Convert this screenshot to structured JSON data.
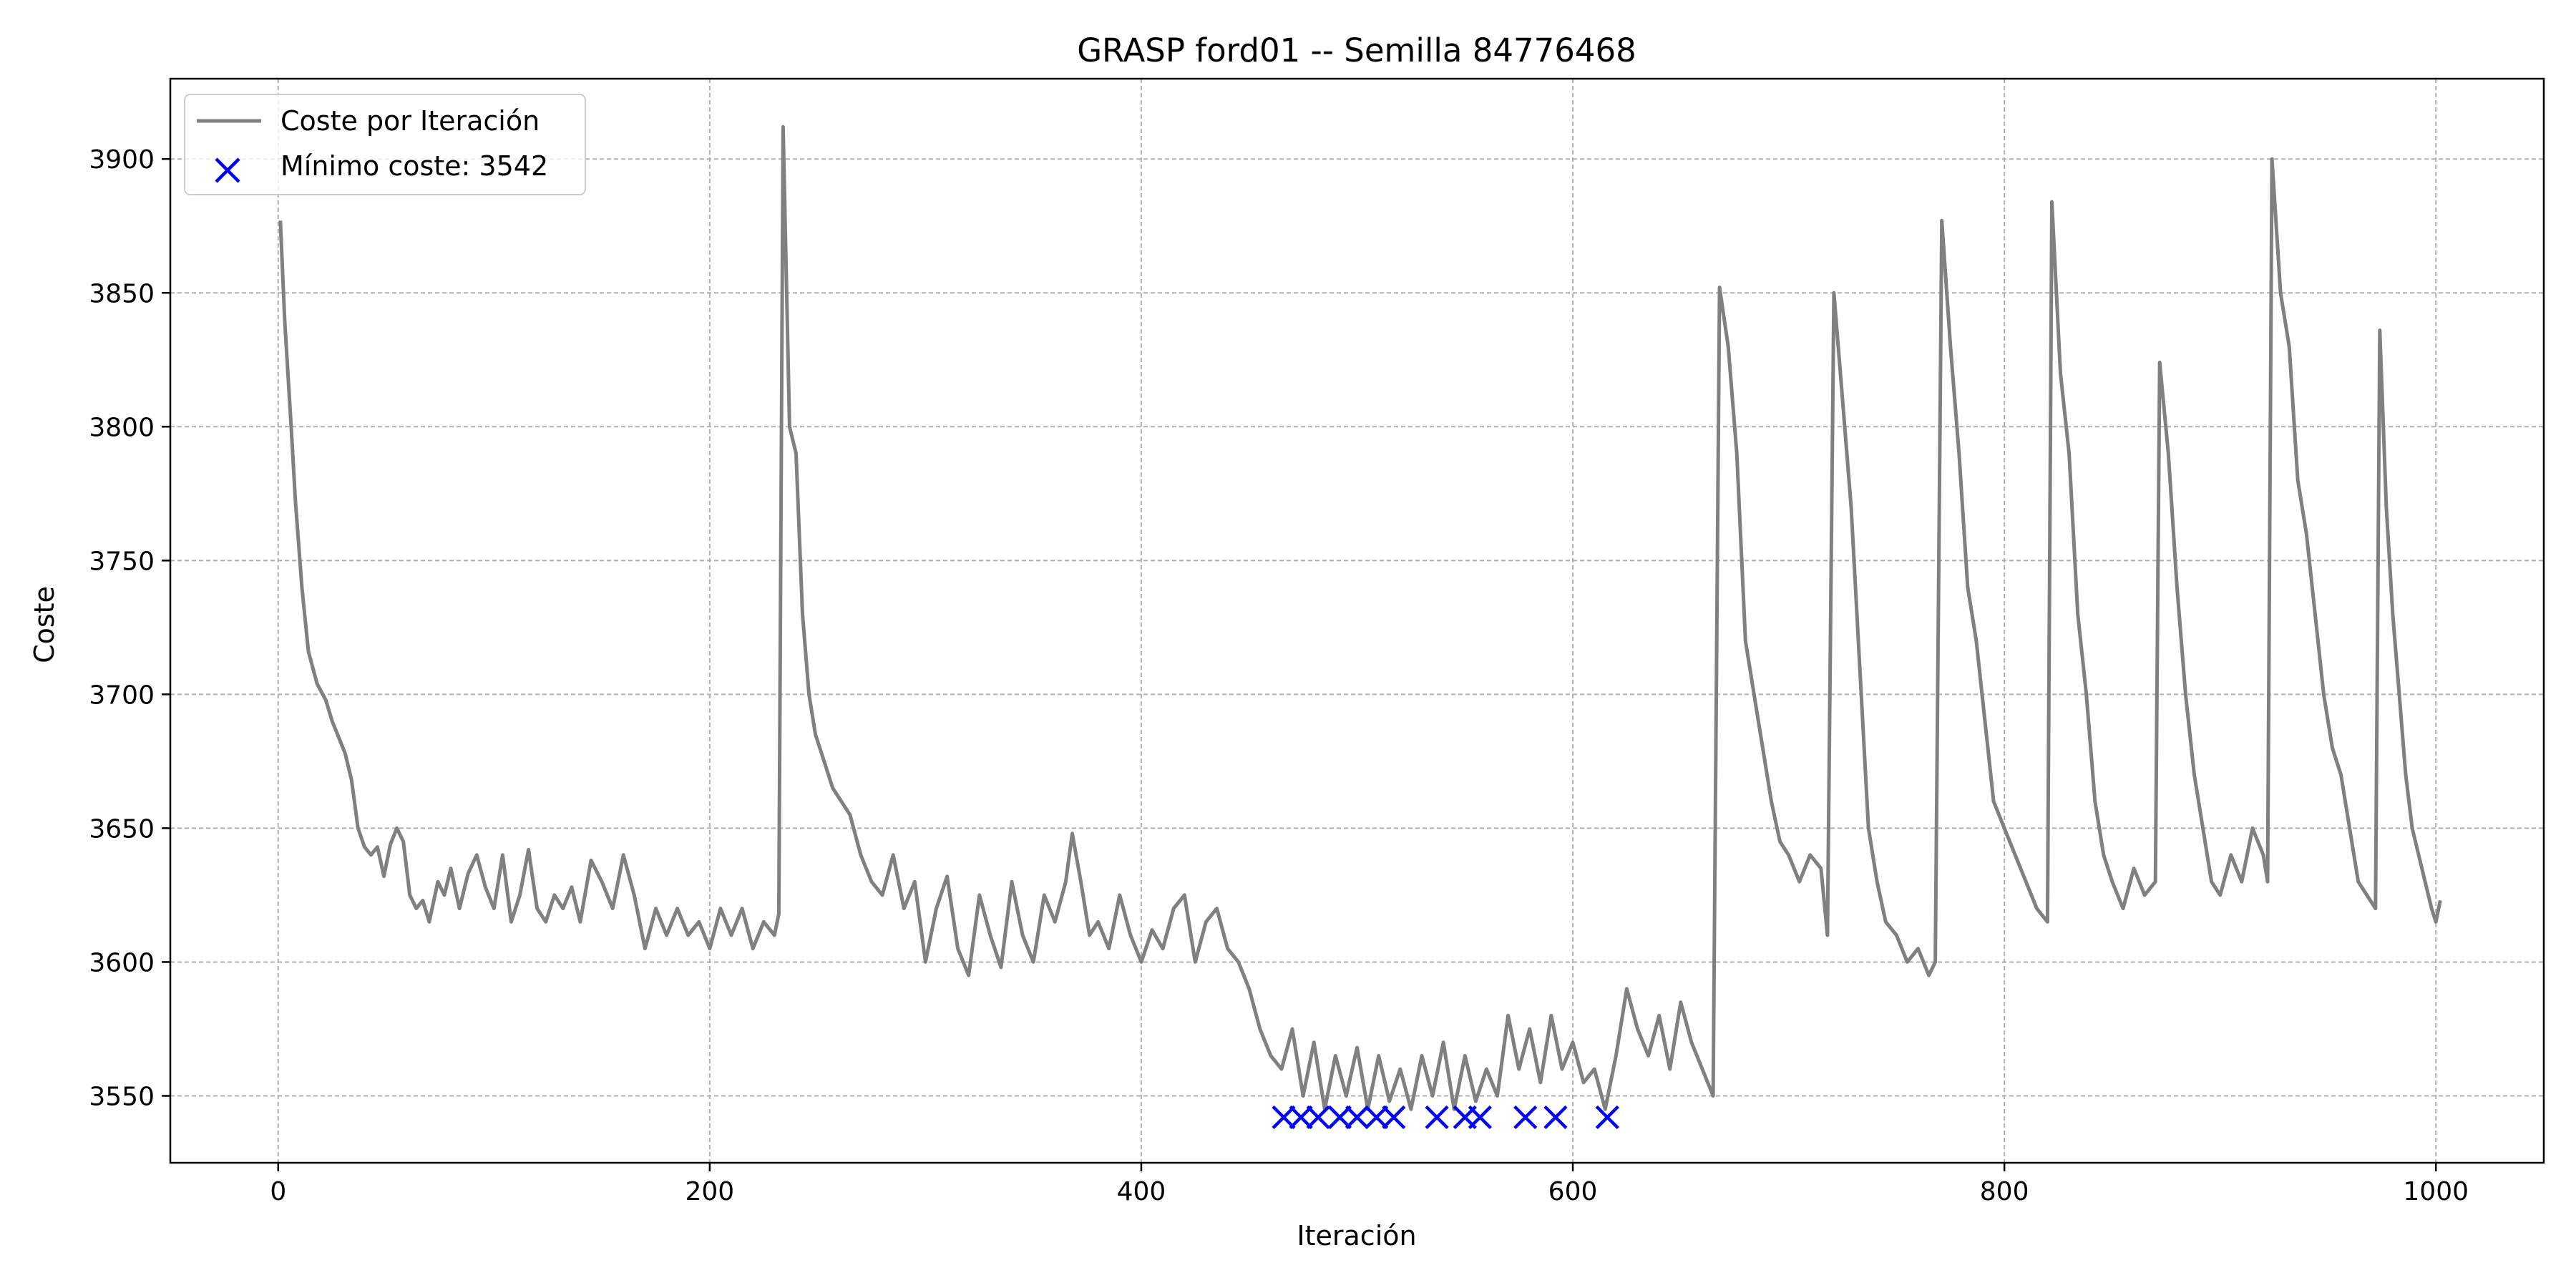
{
  "chart_data": {
    "type": "line",
    "title": "GRASP ford01 -- Semilla 84776468",
    "xlabel": "Iteración",
    "ylabel": "Coste",
    "xlim": [
      -50,
      1050
    ],
    "ylim": [
      3525,
      3930
    ],
    "xticks": [
      0,
      200,
      400,
      600,
      800,
      1000
    ],
    "yticks": [
      3550,
      3600,
      3650,
      3700,
      3750,
      3800,
      3850,
      3900
    ],
    "grid": true,
    "legend_position": "top-left",
    "colors": {
      "line": "#808080",
      "marker": "#0000ff"
    },
    "series": [
      {
        "name": "Coste por Iteración",
        "type": "line",
        "points": [
          [
            1,
            3877
          ],
          [
            3,
            3840
          ],
          [
            6,
            3800
          ],
          [
            8,
            3772
          ],
          [
            11,
            3740
          ],
          [
            14,
            3716
          ],
          [
            18,
            3704
          ],
          [
            22,
            3698
          ],
          [
            25,
            3690
          ],
          [
            28,
            3684
          ],
          [
            31,
            3678
          ],
          [
            34,
            3668
          ],
          [
            37,
            3650
          ],
          [
            40,
            3643
          ],
          [
            43,
            3640
          ],
          [
            46,
            3643
          ],
          [
            49,
            3632
          ],
          [
            52,
            3644
          ],
          [
            55,
            3650
          ],
          [
            58,
            3645
          ],
          [
            61,
            3625
          ],
          [
            64,
            3620
          ],
          [
            67,
            3623
          ],
          [
            70,
            3615
          ],
          [
            74,
            3630
          ],
          [
            77,
            3625
          ],
          [
            80,
            3635
          ],
          [
            84,
            3620
          ],
          [
            88,
            3633
          ],
          [
            92,
            3640
          ],
          [
            96,
            3628
          ],
          [
            100,
            3620
          ],
          [
            104,
            3640
          ],
          [
            108,
            3615
          ],
          [
            112,
            3625
          ],
          [
            116,
            3642
          ],
          [
            120,
            3620
          ],
          [
            124,
            3615
          ],
          [
            128,
            3625
          ],
          [
            132,
            3620
          ],
          [
            136,
            3628
          ],
          [
            140,
            3615
          ],
          [
            145,
            3638
          ],
          [
            150,
            3630
          ],
          [
            155,
            3620
          ],
          [
            160,
            3640
          ],
          [
            165,
            3625
          ],
          [
            170,
            3605
          ],
          [
            175,
            3620
          ],
          [
            180,
            3610
          ],
          [
            185,
            3620
          ],
          [
            190,
            3610
          ],
          [
            195,
            3615
          ],
          [
            200,
            3605
          ],
          [
            205,
            3620
          ],
          [
            210,
            3610
          ],
          [
            215,
            3620
          ],
          [
            220,
            3605
          ],
          [
            225,
            3615
          ],
          [
            230,
            3610
          ],
          [
            232,
            3618
          ],
          [
            234,
            3912
          ],
          [
            237,
            3800
          ],
          [
            240,
            3790
          ],
          [
            243,
            3730
          ],
          [
            246,
            3700
          ],
          [
            249,
            3685
          ],
          [
            253,
            3675
          ],
          [
            257,
            3665
          ],
          [
            261,
            3660
          ],
          [
            265,
            3655
          ],
          [
            270,
            3640
          ],
          [
            275,
            3630
          ],
          [
            280,
            3625
          ],
          [
            285,
            3640
          ],
          [
            290,
            3620
          ],
          [
            295,
            3630
          ],
          [
            300,
            3600
          ],
          [
            305,
            3620
          ],
          [
            310,
            3632
          ],
          [
            315,
            3605
          ],
          [
            320,
            3595
          ],
          [
            325,
            3625
          ],
          [
            330,
            3610
          ],
          [
            335,
            3598
          ],
          [
            340,
            3630
          ],
          [
            345,
            3610
          ],
          [
            350,
            3600
          ],
          [
            355,
            3625
          ],
          [
            360,
            3615
          ],
          [
            365,
            3630
          ],
          [
            368,
            3648
          ],
          [
            372,
            3630
          ],
          [
            376,
            3610
          ],
          [
            380,
            3615
          ],
          [
            385,
            3605
          ],
          [
            390,
            3625
          ],
          [
            395,
            3610
          ],
          [
            400,
            3600
          ],
          [
            405,
            3612
          ],
          [
            410,
            3605
          ],
          [
            415,
            3620
          ],
          [
            420,
            3625
          ],
          [
            425,
            3600
          ],
          [
            430,
            3615
          ],
          [
            435,
            3620
          ],
          [
            440,
            3605
          ],
          [
            445,
            3600
          ],
          [
            450,
            3590
          ],
          [
            455,
            3575
          ],
          [
            460,
            3565
          ],
          [
            465,
            3560
          ],
          [
            470,
            3575
          ],
          [
            475,
            3550
          ],
          [
            480,
            3570
          ],
          [
            485,
            3545
          ],
          [
            490,
            3565
          ],
          [
            495,
            3550
          ],
          [
            500,
            3568
          ],
          [
            505,
            3545
          ],
          [
            510,
            3565
          ],
          [
            515,
            3548
          ],
          [
            520,
            3560
          ],
          [
            525,
            3545
          ],
          [
            530,
            3565
          ],
          [
            535,
            3550
          ],
          [
            540,
            3570
          ],
          [
            545,
            3545
          ],
          [
            550,
            3565
          ],
          [
            555,
            3548
          ],
          [
            560,
            3560
          ],
          [
            565,
            3550
          ],
          [
            570,
            3580
          ],
          [
            575,
            3560
          ],
          [
            580,
            3575
          ],
          [
            585,
            3555
          ],
          [
            590,
            3580
          ],
          [
            595,
            3560
          ],
          [
            600,
            3570
          ],
          [
            605,
            3555
          ],
          [
            610,
            3560
          ],
          [
            615,
            3545
          ],
          [
            620,
            3565
          ],
          [
            625,
            3590
          ],
          [
            630,
            3575
          ],
          [
            635,
            3565
          ],
          [
            640,
            3580
          ],
          [
            645,
            3560
          ],
          [
            650,
            3585
          ],
          [
            655,
            3570
          ],
          [
            660,
            3560
          ],
          [
            665,
            3550
          ],
          [
            668,
            3852
          ],
          [
            672,
            3830
          ],
          [
            676,
            3790
          ],
          [
            680,
            3720
          ],
          [
            684,
            3700
          ],
          [
            688,
            3680
          ],
          [
            692,
            3660
          ],
          [
            696,
            3645
          ],
          [
            700,
            3640
          ],
          [
            705,
            3630
          ],
          [
            710,
            3640
          ],
          [
            715,
            3635
          ],
          [
            718,
            3610
          ],
          [
            721,
            3850
          ],
          [
            725,
            3810
          ],
          [
            729,
            3770
          ],
          [
            733,
            3710
          ],
          [
            737,
            3650
          ],
          [
            741,
            3630
          ],
          [
            745,
            3615
          ],
          [
            750,
            3610
          ],
          [
            755,
            3600
          ],
          [
            760,
            3605
          ],
          [
            765,
            3595
          ],
          [
            768,
            3600
          ],
          [
            771,
            3877
          ],
          [
            775,
            3830
          ],
          [
            779,
            3790
          ],
          [
            783,
            3740
          ],
          [
            787,
            3720
          ],
          [
            791,
            3690
          ],
          [
            795,
            3660
          ],
          [
            800,
            3650
          ],
          [
            805,
            3640
          ],
          [
            810,
            3630
          ],
          [
            815,
            3620
          ],
          [
            820,
            3615
          ],
          [
            822,
            3884
          ],
          [
            826,
            3820
          ],
          [
            830,
            3790
          ],
          [
            834,
            3730
          ],
          [
            838,
            3700
          ],
          [
            842,
            3660
          ],
          [
            846,
            3640
          ],
          [
            850,
            3630
          ],
          [
            855,
            3620
          ],
          [
            860,
            3635
          ],
          [
            865,
            3625
          ],
          [
            870,
            3630
          ],
          [
            872,
            3824
          ],
          [
            876,
            3790
          ],
          [
            880,
            3740
          ],
          [
            884,
            3700
          ],
          [
            888,
            3670
          ],
          [
            892,
            3650
          ],
          [
            896,
            3630
          ],
          [
            900,
            3625
          ],
          [
            905,
            3640
          ],
          [
            910,
            3630
          ],
          [
            915,
            3650
          ],
          [
            920,
            3640
          ],
          [
            922,
            3630
          ],
          [
            924,
            3900
          ],
          [
            928,
            3850
          ],
          [
            932,
            3830
          ],
          [
            936,
            3780
          ],
          [
            940,
            3760
          ],
          [
            944,
            3730
          ],
          [
            948,
            3700
          ],
          [
            952,
            3680
          ],
          [
            956,
            3670
          ],
          [
            960,
            3650
          ],
          [
            964,
            3630
          ],
          [
            968,
            3625
          ],
          [
            972,
            3620
          ],
          [
            974,
            3836
          ],
          [
            977,
            3770
          ],
          [
            980,
            3730
          ],
          [
            983,
            3700
          ],
          [
            986,
            3670
          ],
          [
            989,
            3650
          ],
          [
            992,
            3640
          ],
          [
            995,
            3630
          ],
          [
            998,
            3620
          ],
          [
            1000,
            3615
          ],
          [
            1002,
            3623
          ]
        ]
      },
      {
        "name": "Mínimo coste: 3542",
        "type": "scatter",
        "marker": "x",
        "points": [
          [
            466,
            3542
          ],
          [
            474,
            3542
          ],
          [
            482,
            3542
          ],
          [
            492,
            3542
          ],
          [
            500,
            3542
          ],
          [
            509,
            3542
          ],
          [
            517,
            3542
          ],
          [
            537,
            3542
          ],
          [
            550,
            3542
          ],
          [
            557,
            3542
          ],
          [
            578,
            3542
          ],
          [
            592,
            3542
          ],
          [
            616,
            3542
          ]
        ]
      }
    ]
  }
}
